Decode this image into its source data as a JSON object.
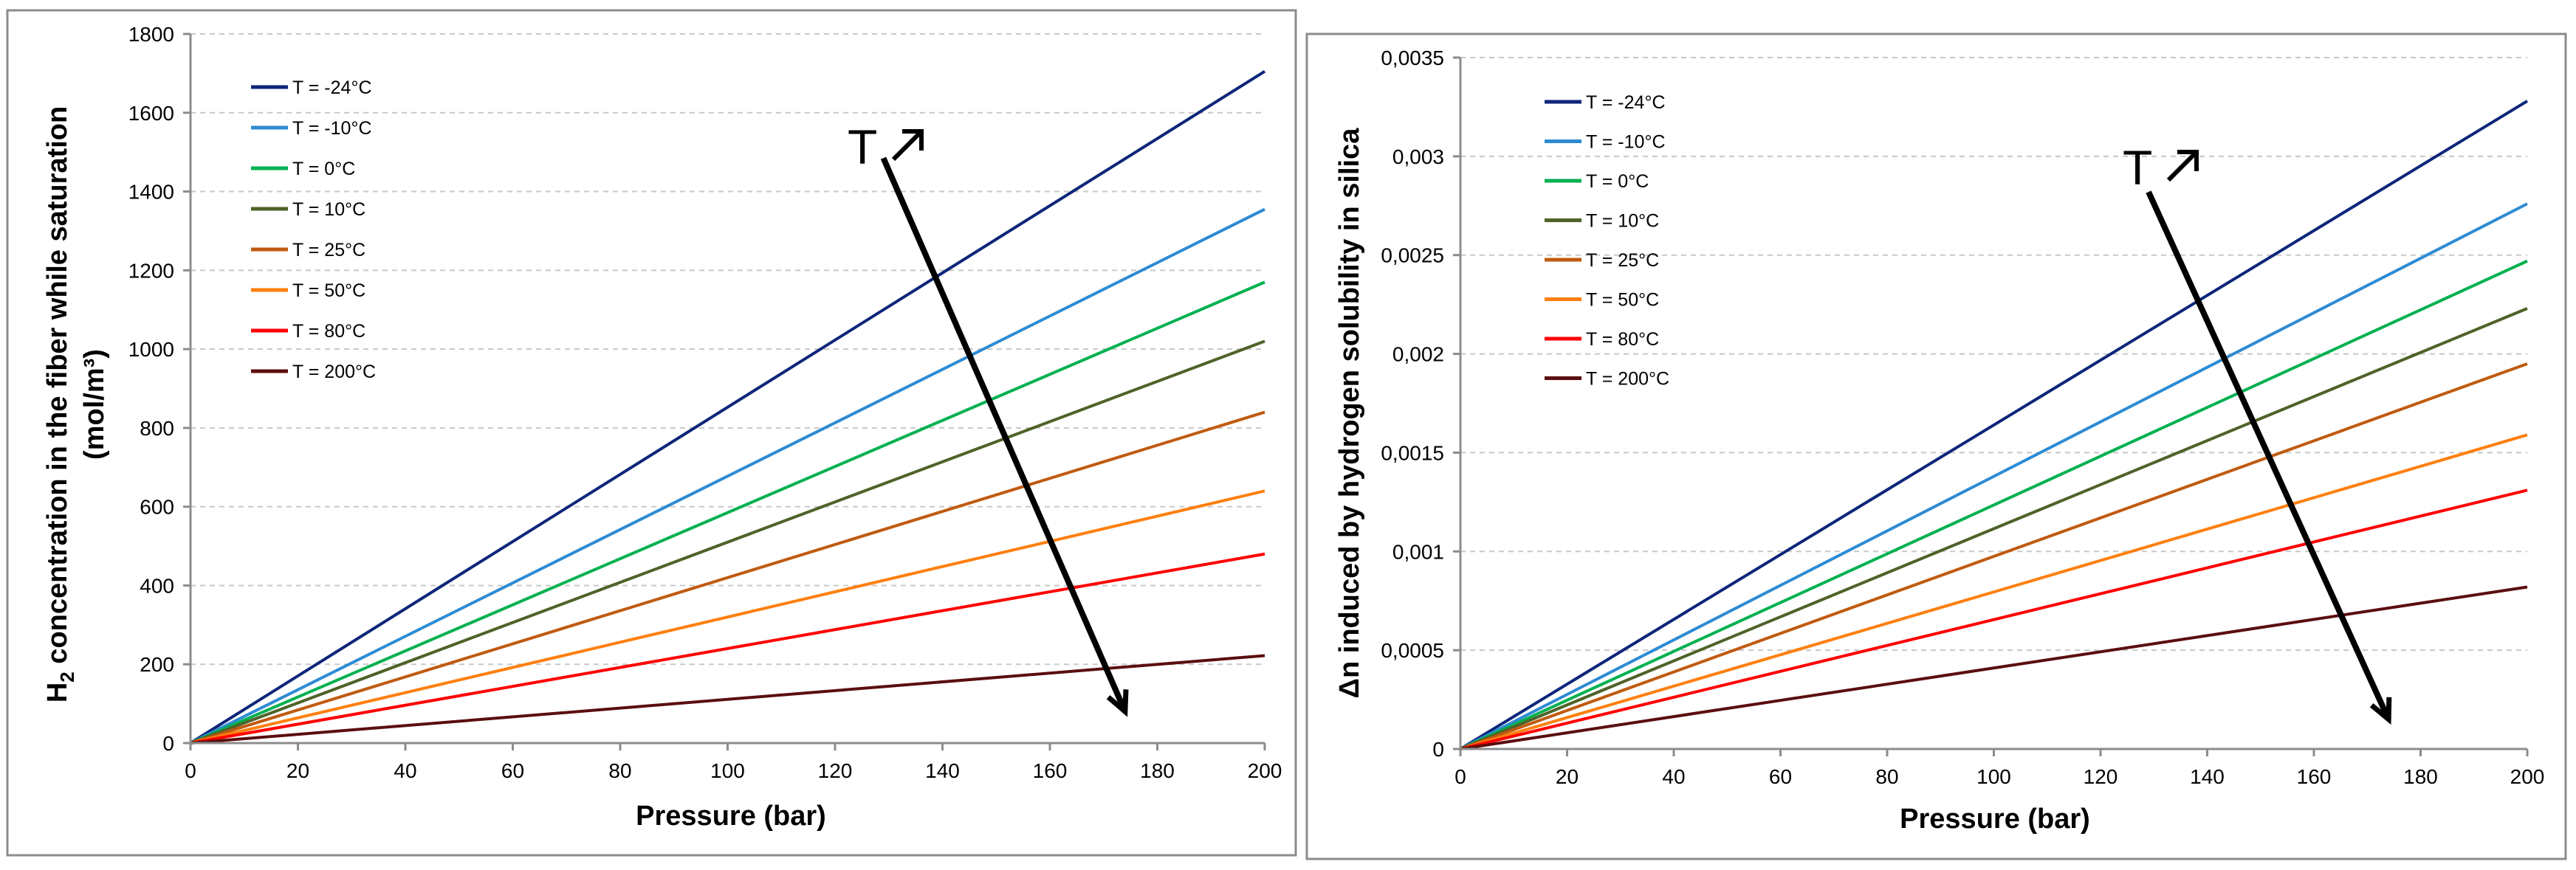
{
  "colors": {
    "T = -24°C": "#0d2679",
    "T = -10°C": "#2e8bd3",
    "T = 0°C": "#00b050",
    "T = 10°C": "#4f6228",
    "T = 25°C": "#c05a10",
    "T = 50°C": "#ff7f0e",
    "T = 80°C": "#ff0000",
    "T = 200°C": "#5b0e0e"
  },
  "chart_data": [
    {
      "type": "line",
      "xlabel": "Pressure (bar)",
      "ylabel_main": "H",
      "ylabel_sub": "2",
      "ylabel_rest": " concentration in the fiber while saturation",
      "ylabel_line2": "(mol/m³)",
      "xlim": [
        0,
        200
      ],
      "ylim": [
        0,
        1800
      ],
      "x_ticks": [
        "0",
        "20",
        "40",
        "60",
        "80",
        "100",
        "120",
        "140",
        "160",
        "180",
        "200"
      ],
      "y_ticks": [
        "0",
        "200",
        "400",
        "600",
        "800",
        "1000",
        "1200",
        "1400",
        "1600",
        "1800"
      ],
      "grid": true,
      "legend_position": "top-left",
      "series": [
        {
          "name": "T = -24°C",
          "x": [
            0,
            200
          ],
          "values": [
            0,
            1705
          ]
        },
        {
          "name": "T = -10°C",
          "x": [
            0,
            200
          ],
          "values": [
            0,
            1355
          ]
        },
        {
          "name": "T = 0°C",
          "x": [
            0,
            200
          ],
          "values": [
            0,
            1170
          ]
        },
        {
          "name": "T = 10°C",
          "x": [
            0,
            200
          ],
          "values": [
            0,
            1020
          ]
        },
        {
          "name": "T = 25°C",
          "x": [
            0,
            200
          ],
          "values": [
            0,
            840
          ]
        },
        {
          "name": "T = 50°C",
          "x": [
            0,
            200
          ],
          "values": [
            0,
            640
          ]
        },
        {
          "name": "T = 80°C",
          "x": [
            0,
            200
          ],
          "values": [
            0,
            480
          ]
        },
        {
          "name": "T = 200°C",
          "x": [
            0,
            200
          ],
          "values": [
            0,
            222
          ]
        }
      ],
      "annotation": {
        "text": "T ↗",
        "arrow_from": [
          129,
          1485
        ],
        "arrow_to": [
          174,
          80
        ]
      }
    },
    {
      "type": "line",
      "xlabel": "Pressure (bar)",
      "ylabel_main": "Δn induced by hydrogen solubility in silica",
      "xlim": [
        0,
        200
      ],
      "ylim": [
        0,
        0.0035
      ],
      "x_ticks": [
        "0",
        "20",
        "40",
        "60",
        "80",
        "100",
        "120",
        "140",
        "160",
        "180",
        "200"
      ],
      "y_ticks": [
        "0",
        "0,0005",
        "0,001",
        "0,0015",
        "0,002",
        "0,0025",
        "0,003",
        "0,0035"
      ],
      "grid": true,
      "legend_position": "top-left",
      "series": [
        {
          "name": "T = -24°C",
          "x": [
            0,
            200
          ],
          "values": [
            0,
            0.00328
          ]
        },
        {
          "name": "T = -10°C",
          "x": [
            0,
            200
          ],
          "values": [
            0,
            0.00276
          ]
        },
        {
          "name": "T = 0°C",
          "x": [
            0,
            200
          ],
          "values": [
            0,
            0.00247
          ]
        },
        {
          "name": "T = 10°C",
          "x": [
            0,
            200
          ],
          "values": [
            0,
            0.00223
          ]
        },
        {
          "name": "T = 25°C",
          "x": [
            0,
            200
          ],
          "values": [
            0,
            0.00195
          ]
        },
        {
          "name": "T = 50°C",
          "x": [
            0,
            200
          ],
          "values": [
            0,
            0.00159
          ]
        },
        {
          "name": "T = 80°C",
          "x": [
            0,
            200
          ],
          "values": [
            0,
            0.00131
          ]
        },
        {
          "name": "T = 200°C",
          "x": [
            0,
            200
          ],
          "values": [
            0,
            0.00082
          ]
        }
      ],
      "annotation": {
        "text": "T ↗",
        "arrow_from": [
          129,
          0.00282
        ],
        "arrow_to": [
          174,
          0.00015
        ]
      }
    }
  ]
}
